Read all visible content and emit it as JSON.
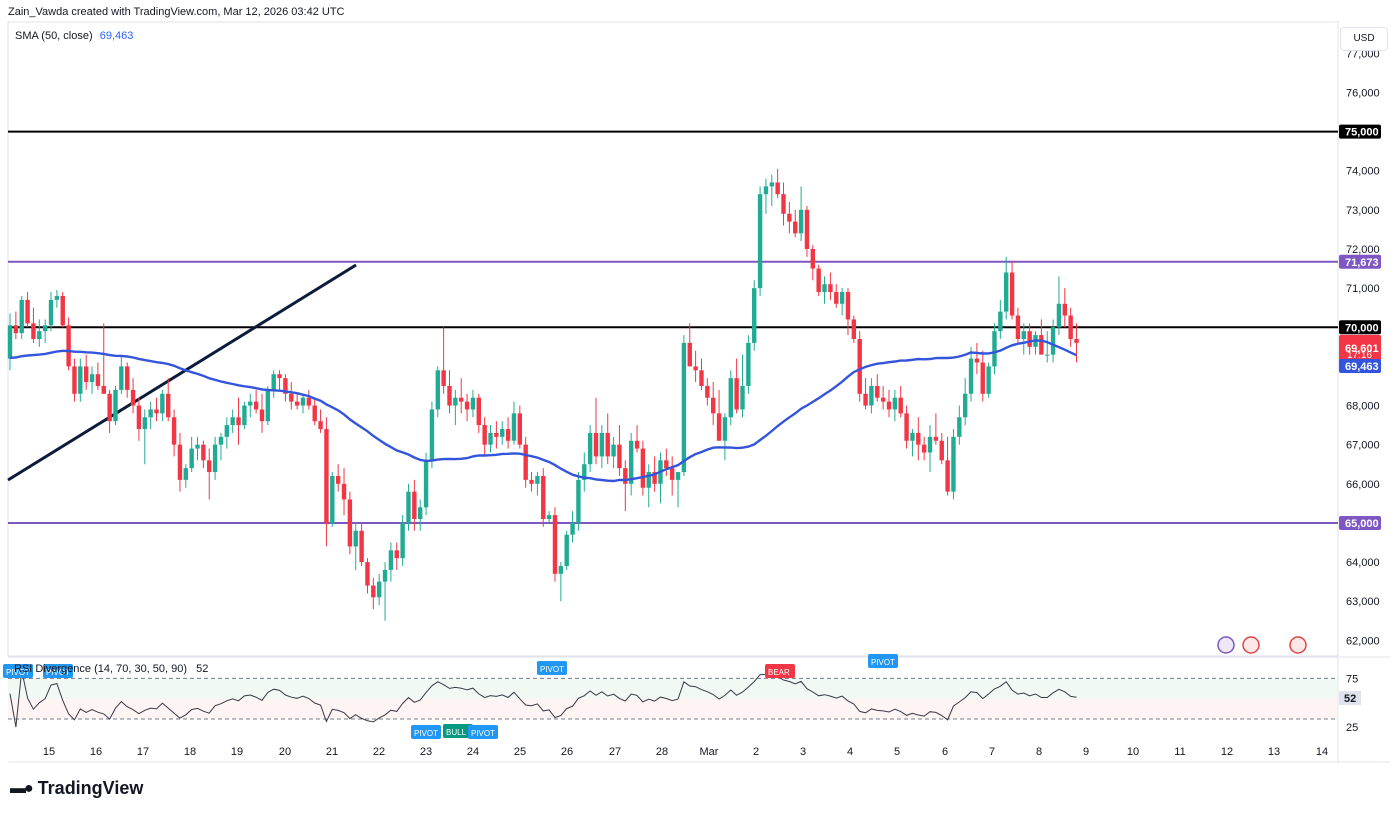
{
  "header": {
    "attribution": "Zain_Vawda created with TradingView.com, Mar 12, 2026 03:42 UTC",
    "currency": "USD",
    "logo_text": "TradingView"
  },
  "colors": {
    "up": "#22ab94",
    "down": "#f23645",
    "sma": "#3455db",
    "purple": "#7e57c2",
    "black": "#000000",
    "trend": "#0b1b3a",
    "rsi": "#363a45"
  },
  "chart_data": {
    "type": "candlestick",
    "price_axis": {
      "ylim": [
        61600,
        77800
      ],
      "ticks": [
        62000,
        63000,
        64000,
        65000,
        66000,
        67000,
        68000,
        69000,
        70000,
        71000,
        72000,
        73000,
        74000,
        75000,
        76000,
        77000
      ],
      "tick_labels": [
        "62,000",
        "63,000",
        "64,000",
        "65,000",
        "66,000",
        "67,000",
        "68,000",
        "69,000",
        "70,000",
        "71,000",
        "72,000",
        "73,000",
        "74,000",
        "75,000",
        "76,000",
        "77,000"
      ]
    },
    "x_axis": {
      "labels": [
        "15",
        "16",
        "17",
        "18",
        "19",
        "20",
        "21",
        "22",
        "23",
        "24",
        "25",
        "26",
        "27",
        "28",
        "Mar",
        "2",
        "3",
        "4",
        "5",
        "6",
        "7",
        "8",
        "9",
        "10",
        "11",
        "12",
        "13",
        "14"
      ],
      "unit": "4h candles"
    },
    "candles": [
      [
        69200,
        70350,
        68900,
        70050
      ],
      [
        70050,
        70400,
        69700,
        69850
      ],
      [
        69850,
        70800,
        69700,
        70700
      ],
      [
        70700,
        70900,
        70000,
        70100
      ],
      [
        70100,
        70500,
        69600,
        69700
      ],
      [
        69700,
        70200,
        69500,
        69900
      ],
      [
        69900,
        70200,
        69600,
        70050
      ],
      [
        70050,
        70900,
        69900,
        70700
      ],
      [
        70700,
        70950,
        70500,
        70800
      ],
      [
        70800,
        70900,
        70000,
        70050
      ],
      [
        70050,
        70250,
        68900,
        69000
      ],
      [
        69000,
        69200,
        68100,
        68300
      ],
      [
        68300,
        69200,
        68100,
        69000
      ],
      [
        69000,
        69300,
        68400,
        68600
      ],
      [
        68600,
        69000,
        68300,
        68800
      ],
      [
        68800,
        69100,
        68400,
        68500
      ],
      [
        68500,
        70100,
        68300,
        68300
      ],
      [
        68300,
        68400,
        67300,
        67600
      ],
      [
        67600,
        68500,
        67500,
        68400
      ],
      [
        68400,
        69300,
        68300,
        69000
      ],
      [
        69000,
        69100,
        68200,
        68400
      ],
      [
        68400,
        68700,
        67800,
        68000
      ],
      [
        68000,
        68200,
        67100,
        67400
      ],
      [
        67400,
        67900,
        66500,
        67700
      ],
      [
        67700,
        68100,
        67400,
        67900
      ],
      [
        67900,
        68200,
        67600,
        67800
      ],
      [
        67800,
        68400,
        67600,
        68300
      ],
      [
        68300,
        68700,
        67600,
        67700
      ],
      [
        67700,
        67900,
        66700,
        67000
      ],
      [
        67000,
        67300,
        65800,
        66100
      ],
      [
        66100,
        66500,
        65900,
        66400
      ],
      [
        66400,
        67200,
        66300,
        66900
      ],
      [
        66900,
        67200,
        66600,
        67000
      ],
      [
        67000,
        67100,
        66400,
        66600
      ],
      [
        66600,
        66900,
        65600,
        66300
      ],
      [
        66300,
        67200,
        66100,
        67000
      ],
      [
        67000,
        67300,
        66600,
        67200
      ],
      [
        67200,
        67700,
        66900,
        67500
      ],
      [
        67500,
        67900,
        67300,
        67700
      ],
      [
        67700,
        68200,
        67000,
        67500
      ],
      [
        67500,
        68100,
        67400,
        68000
      ],
      [
        68000,
        68300,
        67700,
        68100
      ],
      [
        68100,
        68400,
        67800,
        67900
      ],
      [
        67900,
        68300,
        67300,
        67600
      ],
      [
        67600,
        68500,
        67500,
        68400
      ],
      [
        68400,
        68900,
        68200,
        68800
      ],
      [
        68800,
        68900,
        68400,
        68700
      ],
      [
        68700,
        68800,
        68100,
        68300
      ],
      [
        68300,
        68600,
        67900,
        68100
      ],
      [
        68100,
        68300,
        67900,
        68000
      ],
      [
        68000,
        68300,
        67800,
        68200
      ],
      [
        68200,
        68400,
        67900,
        68000
      ],
      [
        68000,
        68200,
        67500,
        67600
      ],
      [
        67600,
        67900,
        67300,
        67400
      ],
      [
        67400,
        67700,
        64400,
        65000
      ],
      [
        65000,
        66300,
        64900,
        66200
      ],
      [
        66200,
        66500,
        65800,
        66000
      ],
      [
        66000,
        66400,
        65200,
        65600
      ],
      [
        65600,
        65800,
        64200,
        64400
      ],
      [
        64400,
        65000,
        63800,
        64800
      ],
      [
        64800,
        65000,
        63900,
        64000
      ],
      [
        64000,
        64100,
        63200,
        63400
      ],
      [
        63400,
        63600,
        62800,
        63100
      ],
      [
        63100,
        63700,
        62900,
        63500
      ],
      [
        63500,
        64000,
        62500,
        63800
      ],
      [
        63800,
        64500,
        63500,
        64300
      ],
      [
        64300,
        64500,
        63800,
        64100
      ],
      [
        64100,
        65200,
        63900,
        65000
      ],
      [
        65000,
        66000,
        64800,
        65800
      ],
      [
        65800,
        66100,
        64800,
        65100
      ],
      [
        65100,
        65600,
        64800,
        65400
      ],
      [
        65400,
        66800,
        65200,
        66600
      ],
      [
        66600,
        68100,
        66400,
        67900
      ],
      [
        67900,
        69000,
        67700,
        68900
      ],
      [
        68900,
        70000,
        68300,
        68500
      ],
      [
        68500,
        68900,
        67800,
        68000
      ],
      [
        68000,
        68400,
        67500,
        68200
      ],
      [
        68200,
        68700,
        67800,
        68100
      ],
      [
        68100,
        68300,
        67600,
        67900
      ],
      [
        67900,
        68400,
        67700,
        68200
      ],
      [
        68200,
        68300,
        67300,
        67500
      ],
      [
        67500,
        67700,
        66700,
        67000
      ],
      [
        67000,
        67500,
        66800,
        67300
      ],
      [
        67300,
        67600,
        66900,
        67200
      ],
      [
        67200,
        67600,
        67000,
        67400
      ],
      [
        67400,
        67700,
        66900,
        67100
      ],
      [
        67100,
        68100,
        67000,
        67800
      ],
      [
        67800,
        68000,
        66900,
        67000
      ],
      [
        67000,
        67200,
        65900,
        66100
      ],
      [
        66100,
        66300,
        65800,
        66000
      ],
      [
        66000,
        66300,
        65700,
        66200
      ],
      [
        66200,
        66400,
        64900,
        65100
      ],
      [
        65100,
        65300,
        65000,
        65200
      ],
      [
        65200,
        65400,
        63500,
        63700
      ],
      [
        63700,
        64000,
        63000,
        63900
      ],
      [
        63900,
        64800,
        63800,
        64700
      ],
      [
        64700,
        65300,
        64500,
        65000
      ],
      [
        65000,
        66300,
        64800,
        66100
      ],
      [
        66100,
        66800,
        65800,
        66500
      ],
      [
        66500,
        67500,
        66300,
        67300
      ],
      [
        67300,
        68200,
        66500,
        66700
      ],
      [
        66700,
        67500,
        66400,
        67300
      ],
      [
        67300,
        67800,
        66500,
        66700
      ],
      [
        66700,
        67200,
        66400,
        67000
      ],
      [
        67000,
        67500,
        66200,
        66400
      ],
      [
        66400,
        66600,
        65300,
        66000
      ],
      [
        66000,
        67300,
        65700,
        67100
      ],
      [
        67100,
        67500,
        66800,
        66900
      ],
      [
        66900,
        67100,
        65700,
        65900
      ],
      [
        65900,
        66500,
        65400,
        66300
      ],
      [
        66300,
        66700,
        65800,
        66000
      ],
      [
        66000,
        66800,
        65500,
        66600
      ],
      [
        66600,
        66900,
        66200,
        66400
      ],
      [
        66400,
        66700,
        65700,
        66100
      ],
      [
        66100,
        66300,
        65400,
        66300
      ],
      [
        66300,
        69800,
        66200,
        69600
      ],
      [
        69600,
        70100,
        69000,
        69000
      ],
      [
        69000,
        69400,
        68600,
        68900
      ],
      [
        68900,
        69200,
        68400,
        68500
      ],
      [
        68500,
        68700,
        68000,
        68200
      ],
      [
        68200,
        68600,
        67500,
        67800
      ],
      [
        67800,
        68400,
        67100,
        67100
      ],
      [
        67100,
        67800,
        66600,
        67700
      ],
      [
        67700,
        68900,
        67500,
        68700
      ],
      [
        68700,
        69200,
        67800,
        67900
      ],
      [
        67900,
        69300,
        67700,
        68500
      ],
      [
        68500,
        69800,
        68300,
        69600
      ],
      [
        69600,
        71200,
        69400,
        71000
      ],
      [
        71000,
        73600,
        70800,
        73400
      ],
      [
        73400,
        73800,
        72900,
        73600
      ],
      [
        73600,
        73900,
        73100,
        73700
      ],
      [
        73700,
        74050,
        73300,
        73400
      ],
      [
        73400,
        73700,
        72600,
        72900
      ],
      [
        72900,
        73200,
        72400,
        72700
      ],
      [
        72700,
        73000,
        72300,
        72400
      ],
      [
        72400,
        73600,
        72200,
        73000
      ],
      [
        73000,
        73100,
        71800,
        72000
      ],
      [
        72000,
        72100,
        71200,
        71500
      ],
      [
        71500,
        71600,
        70800,
        70900
      ],
      [
        70900,
        71300,
        70600,
        71100
      ],
      [
        71100,
        71400,
        70700,
        70900
      ],
      [
        70900,
        71100,
        70500,
        70600
      ],
      [
        70600,
        71000,
        70300,
        70900
      ],
      [
        70900,
        71000,
        69800,
        70200
      ],
      [
        70200,
        70300,
        69600,
        69700
      ],
      [
        69700,
        69900,
        68100,
        68300
      ],
      [
        68300,
        68700,
        67900,
        68000
      ],
      [
        68000,
        68700,
        67800,
        68500
      ],
      [
        68500,
        68800,
        68100,
        68200
      ],
      [
        68200,
        68500,
        67900,
        68100
      ],
      [
        68100,
        68400,
        67700,
        67900
      ],
      [
        67900,
        68400,
        67600,
        68200
      ],
      [
        68200,
        68500,
        67700,
        67800
      ],
      [
        67800,
        68000,
        66900,
        67100
      ],
      [
        67100,
        67400,
        66700,
        67300
      ],
      [
        67300,
        67700,
        66600,
        67000
      ],
      [
        67000,
        67200,
        66600,
        66800
      ],
      [
        66800,
        67500,
        66300,
        67200
      ],
      [
        67200,
        67800,
        67000,
        67100
      ],
      [
        67100,
        67300,
        66500,
        66600
      ],
      [
        66600,
        67200,
        65700,
        65800
      ],
      [
        65800,
        67400,
        65600,
        67200
      ],
      [
        67200,
        68000,
        67000,
        67700
      ],
      [
        67700,
        68700,
        67500,
        68300
      ],
      [
        68300,
        69500,
        68100,
        69200
      ],
      [
        69200,
        69600,
        68800,
        69100
      ],
      [
        69100,
        69400,
        68100,
        68300
      ],
      [
        68300,
        69100,
        68200,
        69000
      ],
      [
        69000,
        70100,
        68800,
        69900
      ],
      [
        69900,
        70700,
        69700,
        70400
      ],
      [
        70400,
        71800,
        70200,
        71400
      ],
      [
        71400,
        71700,
        70200,
        70300
      ],
      [
        70300,
        70500,
        69600,
        69700
      ],
      [
        69700,
        70100,
        69300,
        69900
      ],
      [
        69900,
        70100,
        69300,
        69500
      ],
      [
        69500,
        69900,
        69300,
        69800
      ],
      [
        69800,
        70200,
        69400,
        69300
      ],
      [
        69300,
        69900,
        69100,
        69300
      ],
      [
        69300,
        70200,
        69100,
        70000
      ],
      [
        70000,
        71300,
        69800,
        70600
      ],
      [
        70600,
        71000,
        70000,
        70300
      ],
      [
        70300,
        70500,
        69500,
        69700
      ],
      [
        69700,
        70100,
        69100,
        69601
      ]
    ],
    "sma": {
      "label": "SMA (50, close)",
      "value": "69,463"
    },
    "levels": [
      {
        "price": 75000,
        "label": "75,000",
        "color": "#000000"
      },
      {
        "price": 71673,
        "label": "71,673",
        "color": "#7e57c2"
      },
      {
        "price": 70000,
        "label": "70,000",
        "color": "#000000"
      },
      {
        "price": 65000,
        "label": "65,000",
        "color": "#7e57c2"
      }
    ],
    "last_price": {
      "label": "69,601",
      "countdown": "17:16",
      "color": "#f23645"
    },
    "sma_badge": {
      "label": "69,463",
      "color": "#3455db"
    },
    "rsi": {
      "label": "RSI Divergence (14, 70, 30, 50, 90)",
      "value": "52",
      "ticks": [
        "75",
        "25"
      ],
      "markers": [
        {
          "text": "PIVOT",
          "type": "pivot"
        },
        {
          "text": "PIVOT",
          "type": "pivot"
        },
        {
          "text": "PIVOT",
          "type": "pivot"
        },
        {
          "text": "BEAR",
          "type": "bear"
        },
        {
          "text": "PIVOT",
          "type": "pivot"
        },
        {
          "text": "PIVOT",
          "type": "pivot"
        },
        {
          "text": "BULL",
          "type": "bull"
        },
        {
          "text": "PIVOT",
          "type": "pivot"
        }
      ]
    }
  }
}
